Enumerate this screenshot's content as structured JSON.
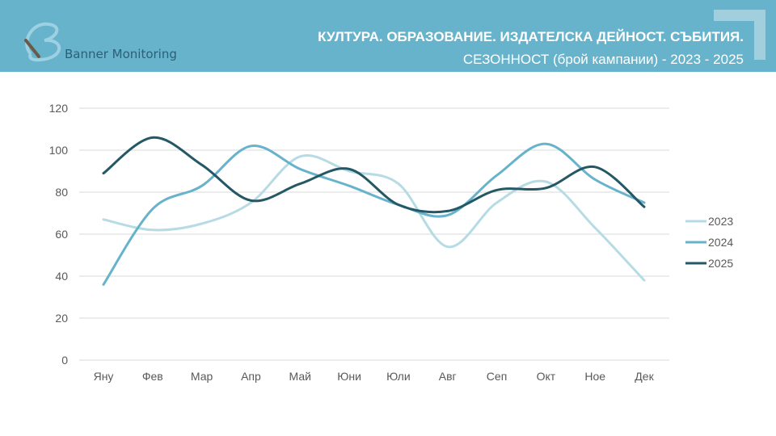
{
  "header": {
    "brand": "Banner Monitoring",
    "title_line1": "КУЛТУРА. ОБРАЗОВАНИЕ. ИЗДАТЕЛСКА ДЕЙНОСТ. СЪБИТИЯ.",
    "title_line2": "СЕЗОННОСТ (брой кампании) - 2023 - 2025",
    "color": "#67b3cb"
  },
  "chart_data": {
    "type": "line",
    "title": "СЕЗОННОСТ (брой кампании) - 2023 - 2025",
    "categories": [
      "Яну",
      "Фев",
      "Мар",
      "Апр",
      "Май",
      "Юни",
      "Юли",
      "Авг",
      "Сеп",
      "Окт",
      "Ное",
      "Дек"
    ],
    "ylim": [
      0,
      120
    ],
    "yticks": [
      0,
      20,
      40,
      60,
      80,
      100,
      120
    ],
    "grid": true,
    "legend": "right",
    "series": [
      {
        "name": "2023",
        "color": "#b7dbe5",
        "values": [
          67,
          62,
          65,
          75,
          97,
          90,
          84,
          54,
          75,
          85,
          63,
          38
        ]
      },
      {
        "name": "2024",
        "color": "#67b3cb",
        "values": [
          36,
          72,
          83,
          102,
          91,
          83,
          74,
          69,
          88,
          103,
          86,
          75
        ]
      },
      {
        "name": "2025",
        "color": "#255865",
        "values": [
          89,
          106,
          93,
          76,
          84,
          91,
          74,
          71,
          81,
          82,
          92,
          73
        ]
      }
    ]
  }
}
